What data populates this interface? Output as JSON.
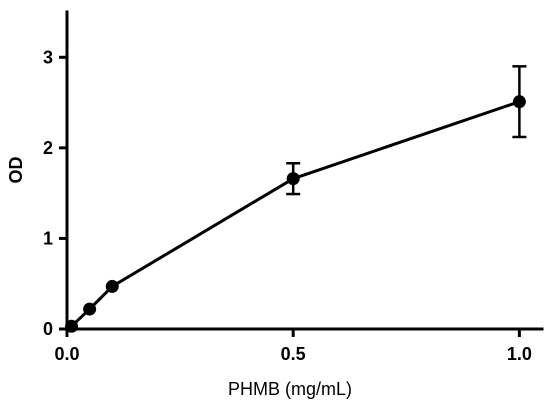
{
  "chart_data": {
    "type": "line",
    "title": "",
    "xlabel": "PHMB (mg/mL)",
    "ylabel": "OD",
    "xlim": [
      0,
      1.05
    ],
    "ylim": [
      0,
      3.5
    ],
    "xticks": [
      "0.0",
      "0.5",
      "1.0"
    ],
    "xtick_values": [
      0,
      0.5,
      1.0
    ],
    "yticks": [
      "0",
      "1",
      "2",
      "3"
    ],
    "ytick_values": [
      0,
      1,
      2,
      3
    ],
    "grid": false,
    "series": [
      {
        "x": [
          0.01,
          0.05,
          0.1,
          0.5,
          1.0
        ],
        "y": [
          0.03,
          0.22,
          0.47,
          1.66,
          2.51
        ],
        "err": [
          0,
          0,
          0,
          0.17,
          0.39
        ]
      }
    ]
  }
}
